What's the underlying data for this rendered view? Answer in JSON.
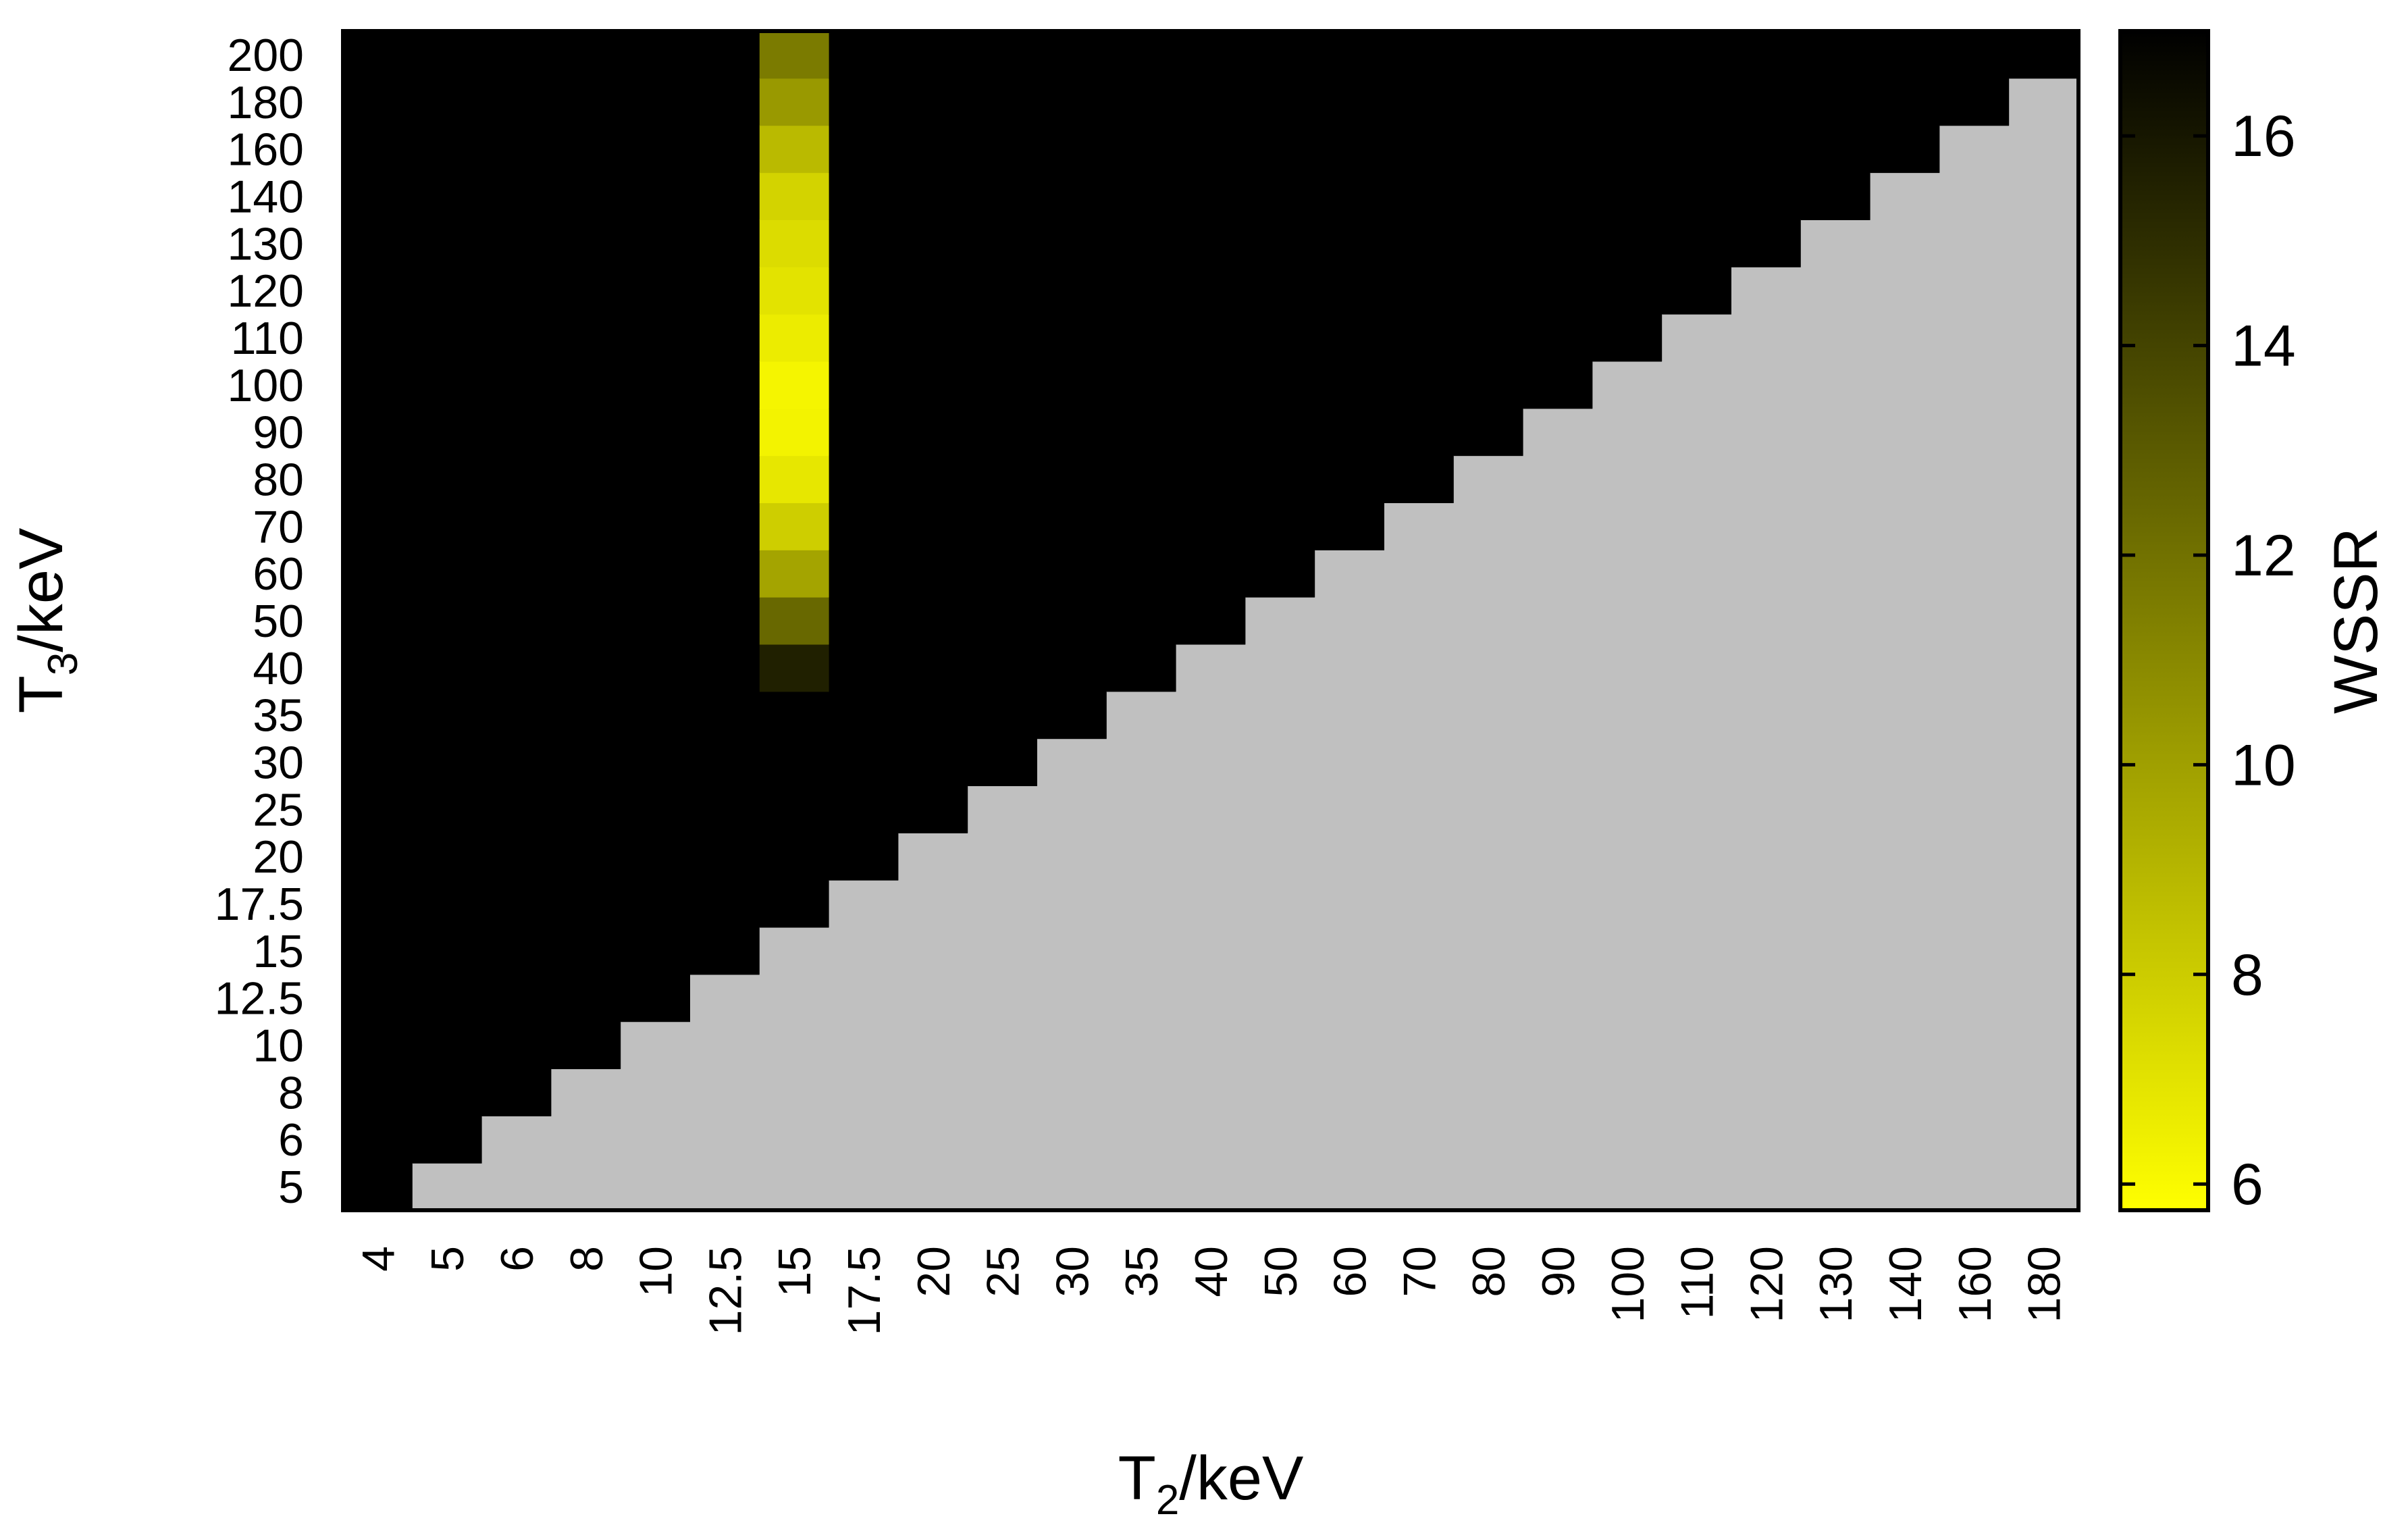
{
  "chart_data": {
    "type": "heatmap",
    "title": "",
    "xlabel": {
      "main": "T",
      "sub": "2",
      "unit": "/keV"
    },
    "ylabel": {
      "main": "T",
      "sub": "3",
      "unit": "/keV"
    },
    "colorbar_label": "WSSR",
    "x_categories": [
      "4",
      "5",
      "6",
      "8",
      "10",
      "12.5",
      "15",
      "17.5",
      "20",
      "25",
      "30",
      "35",
      "40",
      "50",
      "60",
      "70",
      "80",
      "90",
      "100",
      "110",
      "120",
      "130",
      "140",
      "160",
      "180"
    ],
    "y_categories": [
      "5",
      "6",
      "8",
      "10",
      "12.5",
      "15",
      "17.5",
      "20",
      "25",
      "30",
      "35",
      "40",
      "50",
      "60",
      "70",
      "80",
      "90",
      "100",
      "110",
      "120",
      "130",
      "140",
      "160",
      "180",
      "200"
    ],
    "colorbar": {
      "min": 5.75,
      "max": 17.0,
      "ticks": [
        6,
        8,
        10,
        12,
        14,
        16
      ],
      "low_color": "#ffff00",
      "high_color": "#000000"
    },
    "default_value": 17.0,
    "invalid_region": "T3 <= T2",
    "invalid_color": "#c0c0c0",
    "column_values": {
      "x": "15",
      "cells": [
        {
          "y": "40",
          "value": 15.6
        },
        {
          "y": "50",
          "value": 12.4
        },
        {
          "y": "60",
          "value": 9.8
        },
        {
          "y": "70",
          "value": 7.9
        },
        {
          "y": "80",
          "value": 6.8
        },
        {
          "y": "90",
          "value": 6.3
        },
        {
          "y": "100",
          "value": 6.2
        },
        {
          "y": "110",
          "value": 6.6
        },
        {
          "y": "120",
          "value": 7.0
        },
        {
          "y": "130",
          "value": 7.3
        },
        {
          "y": "140",
          "value": 7.7
        },
        {
          "y": "160",
          "value": 8.8
        },
        {
          "y": "180",
          "value": 10.3
        },
        {
          "y": "200",
          "value": 11.6
        }
      ]
    }
  }
}
